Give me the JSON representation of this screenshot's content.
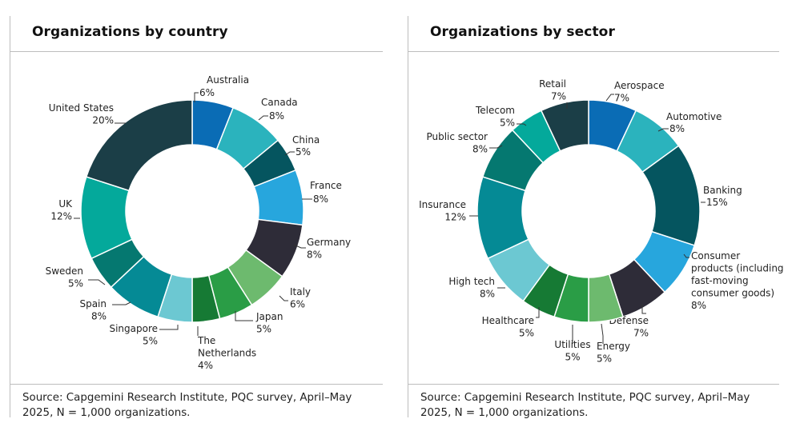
{
  "chart_data": [
    {
      "type": "pie",
      "title": "Organizations by country",
      "source": "Source: Capgemini Research Institute, PQC survey, April–May 2025, N = 1,000 organizations.",
      "unit": "%",
      "slices": [
        {
          "label": [
            "Australia"
          ],
          "value": 6,
          "color": "#0a6cb5"
        },
        {
          "label": [
            "Canada"
          ],
          "value": 8,
          "color": "#2bb3bd"
        },
        {
          "label": [
            "China"
          ],
          "value": 5,
          "color": "#05555f"
        },
        {
          "label": [
            "France"
          ],
          "value": 8,
          "color": "#27a6dd"
        },
        {
          "label": [
            "Germany"
          ],
          "value": 8,
          "color": "#2e2c38"
        },
        {
          "label": [
            "Italy"
          ],
          "value": 6,
          "color": "#6dba6e"
        },
        {
          "label": [
            "Japan"
          ],
          "value": 5,
          "color": "#2a9d46"
        },
        {
          "label": [
            "The",
            "Netherlands"
          ],
          "value": 4,
          "color": "#167a34"
        },
        {
          "label": [
            "Singapore"
          ],
          "value": 5,
          "color": "#6cc8d2"
        },
        {
          "label": [
            "Spain"
          ],
          "value": 8,
          "color": "#058a95"
        },
        {
          "label": [
            "Sweden"
          ],
          "value": 5,
          "color": "#057870"
        },
        {
          "label": [
            "UK"
          ],
          "value": 12,
          "color": "#04a99b"
        },
        {
          "label": [
            "United States"
          ],
          "value": 20,
          "color": "#1b3e47"
        }
      ]
    },
    {
      "type": "pie",
      "title": "Organizations by sector",
      "source": "Source: Capgemini Research Institute, PQC survey, April–May 2025, N = 1,000 organizations.",
      "unit": "%",
      "slices": [
        {
          "label": [
            "Aerospace"
          ],
          "value": 7,
          "color": "#0a6cb5"
        },
        {
          "label": [
            "Automotive"
          ],
          "value": 8,
          "color": "#2bb3bd"
        },
        {
          "label": [
            "Banking"
          ],
          "value": 15,
          "color": "#05555f"
        },
        {
          "label": [
            "Consumer",
            "products (including",
            "fast-moving",
            "consumer goods)"
          ],
          "value": 8,
          "color": "#27a6dd"
        },
        {
          "label": [
            "Defense"
          ],
          "value": 7,
          "color": "#2e2c38"
        },
        {
          "label": [
            "Energy"
          ],
          "value": 5,
          "color": "#6dba6e"
        },
        {
          "label": [
            "Utilities"
          ],
          "value": 5,
          "color": "#2a9d46"
        },
        {
          "label": [
            "Healthcare"
          ],
          "value": 5,
          "color": "#167a34"
        },
        {
          "label": [
            "High tech"
          ],
          "value": 8,
          "color": "#6cc8d2"
        },
        {
          "label": [
            "Insurance"
          ],
          "value": 12,
          "color": "#058a95"
        },
        {
          "label": [
            "Public sector"
          ],
          "value": 8,
          "color": "#057870"
        },
        {
          "label": [
            "Telecom"
          ],
          "value": 5,
          "color": "#04a99b"
        },
        {
          "label": [
            "Retail"
          ],
          "value": 7,
          "color": "#1b3e47"
        }
      ]
    }
  ]
}
